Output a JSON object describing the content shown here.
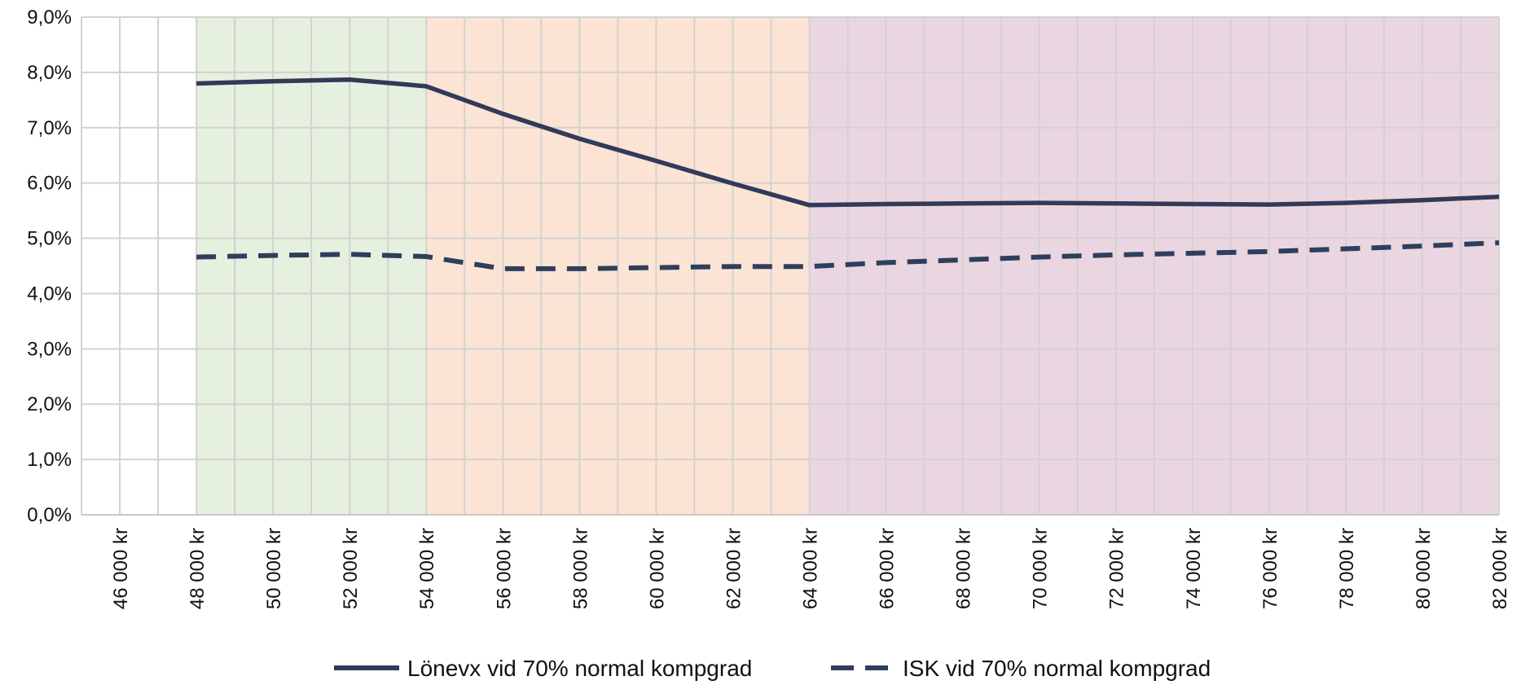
{
  "chart_data": {
    "type": "line",
    "categories": [
      "46 000 kr",
      "48 000 kr",
      "50 000 kr",
      "52 000 kr",
      "54 000 kr",
      "56 000 kr",
      "58 000 kr",
      "60 000 kr",
      "62 000 kr",
      "64 000 kr",
      "66 000 kr",
      "68 000 kr",
      "70 000 kr",
      "72 000 kr",
      "74 000 kr",
      "76 000 kr",
      "78 000 kr",
      "80 000 kr",
      "82 000 kr"
    ],
    "x": [
      46000,
      48000,
      50000,
      52000,
      54000,
      56000,
      58000,
      60000,
      62000,
      64000,
      66000,
      68000,
      70000,
      72000,
      74000,
      76000,
      78000,
      80000,
      82000
    ],
    "series": [
      {
        "name": "Lönevx vid 70% normal kompgrad",
        "style": "solid",
        "color": "#323a5a",
        "values": [
          null,
          7.8,
          7.84,
          7.87,
          7.75,
          7.25,
          6.8,
          6.4,
          5.99,
          5.6,
          5.62,
          5.63,
          5.64,
          5.63,
          5.62,
          5.61,
          5.64,
          5.69,
          5.75
        ]
      },
      {
        "name": "ISK vid 70% normal kompgrad",
        "style": "dashed",
        "color": "#2f3e5c",
        "values": [
          null,
          4.66,
          4.69,
          4.71,
          4.67,
          4.45,
          4.45,
          4.47,
          4.49,
          4.49,
          4.56,
          4.61,
          4.66,
          4.7,
          4.73,
          4.76,
          4.81,
          4.86,
          4.92
        ]
      }
    ],
    "yticks": [
      "0,0%",
      "1,0%",
      "2,0%",
      "3,0%",
      "4,0%",
      "5,0%",
      "6,0%",
      "7,0%",
      "8,0%",
      "9,0%"
    ],
    "ylim": [
      0,
      9
    ],
    "xlim": [
      45000,
      82000
    ],
    "grid": true,
    "shaded_regions": [
      {
        "from": 48000,
        "to": 54000,
        "color": "#e6f0de"
      },
      {
        "from": 54000,
        "to": 64000,
        "color": "#fce4d4"
      },
      {
        "from": 64000,
        "to": 82000,
        "color": "#ead6e0"
      }
    ],
    "legend_position": "bottom",
    "title": "",
    "xlabel": "",
    "ylabel": ""
  }
}
